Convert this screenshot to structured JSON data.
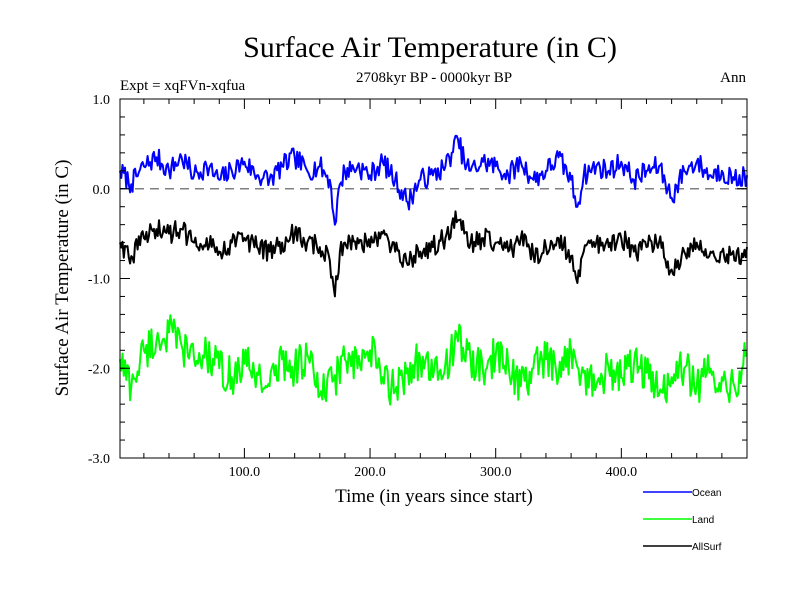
{
  "chart_data": {
    "type": "line",
    "title": "Surface Air Temperature (in C)",
    "subtitle": "2708kyr BP - 0000kyr BP",
    "left_annotation": "Expt = xqFVn-xqfua",
    "right_annotation": "Ann",
    "xlabel": "Time (in years since start)",
    "ylabel": "Surface Air Temperature (in C)",
    "xlim": [
      1,
      500
    ],
    "ylim": [
      -3.0,
      1.0
    ],
    "x_ticks": [
      100,
      200,
      300,
      400
    ],
    "x_tick_labels": [
      "100.0",
      "200.0",
      "300.0",
      "400.0"
    ],
    "y_ticks": [
      1.0,
      0.0,
      -1.0,
      -2.0,
      -3.0
    ],
    "y_tick_labels": [
      "1.0",
      "0.0",
      "-1.0",
      "-2.0",
      "-3.0"
    ],
    "reference_line": {
      "y": 0.0,
      "style": "dashed",
      "color": "#808080"
    },
    "legend_position": "bottom-right, outside plot",
    "series": [
      {
        "name": "Ocean",
        "color": "#0000ff",
        "x": [
          1,
          10,
          20,
          30,
          40,
          50,
          60,
          70,
          80,
          90,
          100,
          110,
          120,
          130,
          140,
          150,
          160,
          168,
          172,
          176,
          180,
          190,
          200,
          210,
          220,
          230,
          240,
          250,
          260,
          265,
          270,
          275,
          280,
          290,
          300,
          310,
          320,
          330,
          340,
          350,
          360,
          365,
          370,
          380,
          390,
          400,
          410,
          420,
          430,
          440,
          450,
          460,
          470,
          480,
          490,
          500
        ],
        "values": [
          0.2,
          0.05,
          0.25,
          0.35,
          0.2,
          0.35,
          0.15,
          0.25,
          0.1,
          0.2,
          0.3,
          0.15,
          0.1,
          0.25,
          0.35,
          0.2,
          0.25,
          0.1,
          -0.4,
          0.05,
          0.2,
          0.25,
          0.15,
          0.3,
          0.1,
          -0.15,
          0.1,
          0.15,
          0.25,
          0.4,
          0.55,
          0.3,
          0.2,
          0.3,
          0.25,
          0.15,
          0.3,
          0.1,
          0.2,
          0.35,
          0.1,
          -0.2,
          0.15,
          0.25,
          0.2,
          0.3,
          0.1,
          0.2,
          0.25,
          -0.1,
          0.2,
          0.3,
          0.15,
          0.2,
          0.1,
          0.15
        ]
      },
      {
        "name": "Land",
        "color": "#00ff00",
        "x": [
          1,
          10,
          20,
          30,
          40,
          50,
          60,
          70,
          80,
          90,
          100,
          110,
          120,
          130,
          140,
          150,
          160,
          170,
          180,
          190,
          200,
          210,
          220,
          230,
          240,
          250,
          260,
          270,
          280,
          290,
          300,
          310,
          320,
          330,
          340,
          350,
          360,
          370,
          380,
          390,
          400,
          410,
          420,
          430,
          440,
          450,
          460,
          470,
          480,
          490,
          500
        ],
        "values": [
          -1.9,
          -2.2,
          -1.8,
          -1.7,
          -1.6,
          -1.75,
          -1.9,
          -1.85,
          -2.0,
          -2.1,
          -1.95,
          -2.05,
          -2.2,
          -1.9,
          -2.0,
          -1.85,
          -2.3,
          -2.15,
          -1.9,
          -2.0,
          -1.8,
          -2.1,
          -2.25,
          -2.0,
          -1.9,
          -2.1,
          -1.95,
          -1.7,
          -1.9,
          -2.05,
          -1.85,
          -1.95,
          -2.2,
          -2.0,
          -1.9,
          -2.1,
          -1.8,
          -2.05,
          -2.2,
          -2.0,
          -2.1,
          -1.95,
          -2.05,
          -2.3,
          -2.1,
          -2.0,
          -2.2,
          -2.05,
          -2.1,
          -2.2,
          -1.85
        ]
      },
      {
        "name": "AllSurf",
        "color": "#000000",
        "x": [
          1,
          10,
          20,
          30,
          40,
          50,
          60,
          70,
          80,
          90,
          100,
          110,
          120,
          130,
          140,
          150,
          160,
          168,
          172,
          176,
          180,
          190,
          200,
          210,
          220,
          230,
          240,
          250,
          260,
          265,
          270,
          275,
          280,
          290,
          300,
          310,
          320,
          330,
          340,
          350,
          360,
          365,
          370,
          380,
          390,
          400,
          410,
          420,
          430,
          440,
          450,
          460,
          470,
          480,
          490,
          500
        ],
        "values": [
          -0.6,
          -0.75,
          -0.55,
          -0.45,
          -0.5,
          -0.45,
          -0.6,
          -0.55,
          -0.7,
          -0.6,
          -0.55,
          -0.65,
          -0.7,
          -0.6,
          -0.5,
          -0.6,
          -0.65,
          -0.8,
          -1.2,
          -0.7,
          -0.6,
          -0.55,
          -0.65,
          -0.5,
          -0.7,
          -0.85,
          -0.7,
          -0.65,
          -0.55,
          -0.4,
          -0.35,
          -0.5,
          -0.6,
          -0.55,
          -0.6,
          -0.7,
          -0.55,
          -0.75,
          -0.65,
          -0.55,
          -0.75,
          -1.05,
          -0.7,
          -0.6,
          -0.65,
          -0.55,
          -0.7,
          -0.65,
          -0.6,
          -0.9,
          -0.7,
          -0.6,
          -0.75,
          -0.7,
          -0.8,
          -0.65
        ]
      }
    ]
  }
}
